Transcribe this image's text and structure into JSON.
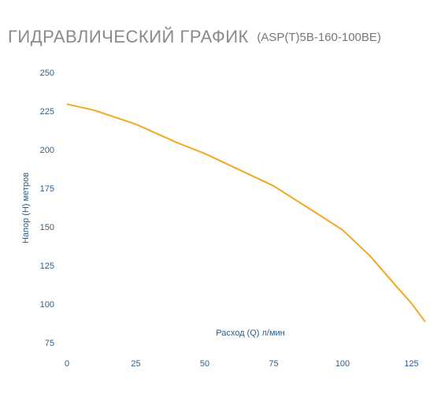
{
  "chart_data": {
    "type": "line",
    "title": "ГИДРАВЛИЧЕСКИЙ ГРАФИК",
    "subtitle": "(ASP(T)5B-160-100BE)",
    "x_label": "Расход (Q) л/мин",
    "y_label": "Напор (H) метров",
    "x": [
      0,
      10,
      25,
      40,
      50,
      75,
      90,
      100,
      110,
      120,
      125,
      130
    ],
    "series": [
      {
        "name": "ASP(T)5B-160-100BE",
        "color": "#f5a623",
        "values": [
          230,
          226,
          217,
          205,
          198,
          177,
          160,
          148.5,
          131.6,
          111,
          101,
          89
        ]
      }
    ],
    "xlim": [
      0,
      130
    ],
    "xticks": [
      0,
      25,
      50,
      75,
      100,
      125
    ],
    "ylim": [
      75,
      250
    ],
    "yticks": [
      75,
      100,
      125,
      150,
      175,
      200,
      225,
      250
    ],
    "grid": false
  }
}
